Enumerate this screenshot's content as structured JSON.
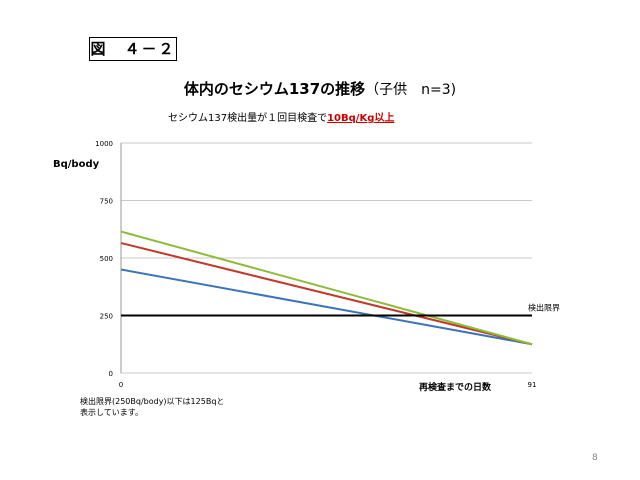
{
  "figure_label": "図　４－２",
  "title_main": "体内のセシウム137の推移",
  "title_suffix": "（子供　n=3)",
  "subtitle_prefix": "セシウム137検出量が１回目検査で",
  "subtitle_highlight": "10Bq/Kg以上",
  "note_line1": "検出限界(250Bq/body)以下は125Bqと",
  "note_line2": "表示しています。",
  "page_number": "8",
  "colors": {
    "series_blue": "#3b74b8",
    "series_red": "#c0392b",
    "series_green": "#8dbb3a",
    "limit_line": "#000000",
    "grid": "#c8c8c8",
    "highlight": "#cc0000"
  },
  "chart_data": {
    "type": "line",
    "title": "体内のセシウム137の推移",
    "ylabel": "Bq/body",
    "xlabel": "再検査までの日数",
    "x_ticks": [
      0,
      91
    ],
    "y_ticks": [
      0,
      250,
      500,
      750,
      1000
    ],
    "xlim": [
      0,
      91
    ],
    "ylim": [
      0,
      1000
    ],
    "grid": true,
    "series": [
      {
        "color": "#3b74b8",
        "x": [
          0,
          91
        ],
        "values": [
          450,
          125
        ]
      },
      {
        "color": "#c0392b",
        "x": [
          0,
          91
        ],
        "values": [
          565,
          125
        ]
      },
      {
        "color": "#8dbb3a",
        "x": [
          0,
          91
        ],
        "values": [
          615,
          125
        ]
      }
    ],
    "reference_line": {
      "value": 250,
      "label": "検出限界"
    }
  }
}
